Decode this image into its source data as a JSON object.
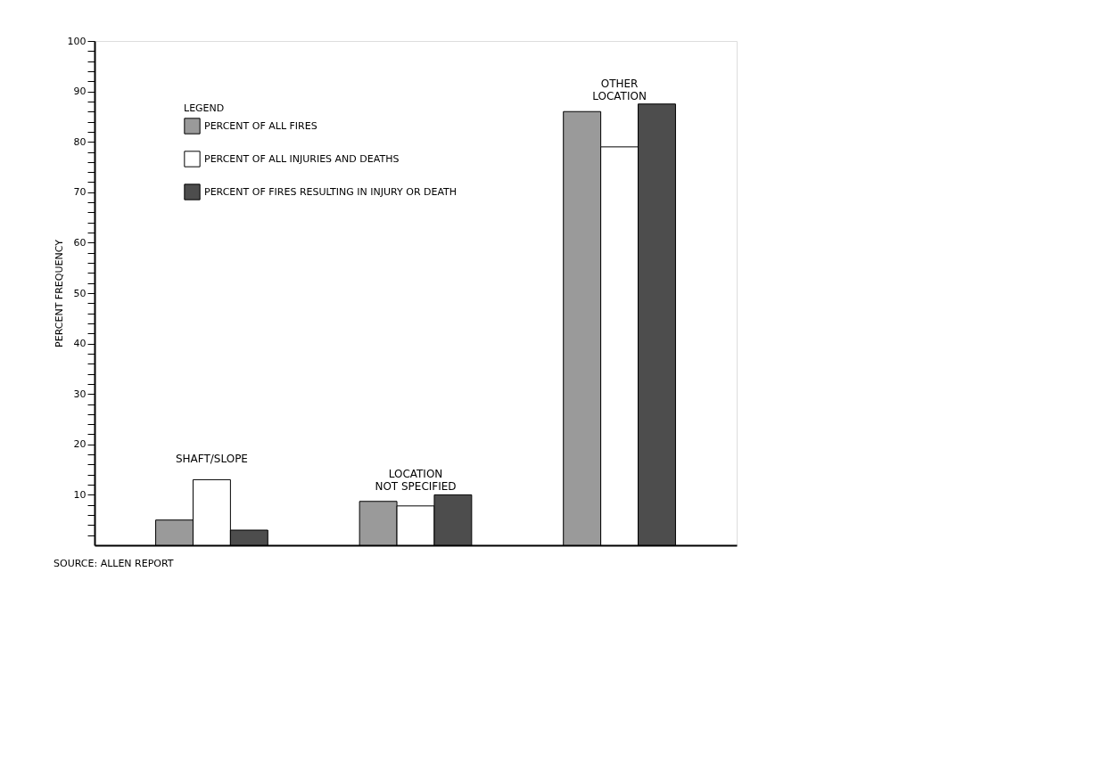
{
  "chart_data": {
    "type": "bar",
    "categories": [
      "SHAFT/SLOPE",
      "LOCATION NOT SPECIFIED",
      "OTHER LOCATION"
    ],
    "series": [
      {
        "name": "PERCENT OF ALL FIRES",
        "color": "#9a9a9a",
        "values": [
          5,
          8.7,
          86
        ]
      },
      {
        "name": "PERCENT OF ALL INJURIES AND DEATHS",
        "color": "#ffffff",
        "values": [
          13,
          7.8,
          79
        ]
      },
      {
        "name": "PERCENT OF FIRES RESULTING IN INJURY OR DEATH",
        "color": "#4d4d4d",
        "values": [
          3,
          10,
          87.5
        ]
      }
    ],
    "ylabel": "PERCENT FREQUENCY",
    "legend_title": "LEGEND",
    "legend": "top left",
    "grid": false,
    "tick_labels": "y",
    "ylim": [
      0,
      100
    ],
    "yticks": [
      {
        "value": 2,
        "label": null
      },
      {
        "value": 4,
        "label": null
      },
      {
        "value": 6,
        "label": null
      },
      {
        "value": 8,
        "label": null
      },
      10,
      {
        "value": 12,
        "label": null
      },
      {
        "value": 14,
        "label": null
      },
      {
        "value": 16,
        "label": null
      },
      {
        "value": 18,
        "label": null
      },
      20,
      {
        "value": 22,
        "label": null
      },
      {
        "value": 24,
        "label": null
      },
      {
        "value": 26,
        "label": null
      },
      {
        "value": 28,
        "label": null
      },
      30,
      {
        "value": 32,
        "label": null
      },
      {
        "value": 34,
        "label": null
      },
      {
        "value": 36,
        "label": null
      },
      {
        "value": 38,
        "label": null
      },
      40,
      {
        "value": 42,
        "label": null
      },
      {
        "value": 44,
        "label": null
      },
      {
        "value": 46,
        "label": null
      },
      {
        "value": 48,
        "label": null
      },
      50,
      {
        "value": 52,
        "label": null
      },
      {
        "value": 54,
        "label": null
      },
      {
        "value": 56,
        "label": null
      },
      {
        "value": 58,
        "label": null
      },
      60,
      {
        "value": 62,
        "label": null
      },
      {
        "value": 64,
        "label": null
      },
      {
        "value": 66,
        "label": null
      },
      {
        "value": 68,
        "label": null
      },
      70,
      {
        "value": 72,
        "label": null
      },
      {
        "value": 74,
        "label": null
      },
      {
        "value": 76,
        "label": null
      },
      {
        "value": 78,
        "label": null
      },
      80,
      {
        "value": 82,
        "label": null
      },
      {
        "value": 84,
        "label": null
      },
      {
        "value": 86,
        "label": null
      },
      {
        "value": 88,
        "label": null
      },
      90,
      {
        "value": 92,
        "label": null
      },
      {
        "value": 94,
        "label": null
      },
      {
        "value": 96,
        "label": null
      },
      {
        "value": 98,
        "label": null
      },
      100
    ],
    "annotations": [
      "SOURCE:  ALLEN REPORT"
    ]
  }
}
